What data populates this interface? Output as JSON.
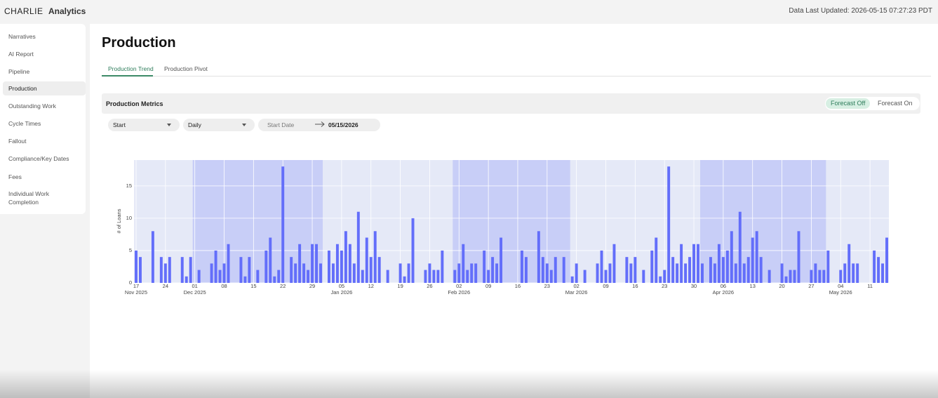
{
  "header": {
    "logo": "CHARLIE",
    "app": "Analytics",
    "updated": "Data Last Updated: 2026-05-15 07:27:23 PDT"
  },
  "nav": {
    "items": [
      "Narratives",
      "AI Report",
      "Pipeline",
      "Production",
      "Outstanding Work",
      "Cycle Times",
      "Fallout",
      "Compliance/Key Dates",
      "Fees",
      "Individual Work Completion"
    ],
    "active": 3
  },
  "page": {
    "title": "Production",
    "tabs": [
      "Production Trend",
      "Production Pivot"
    ],
    "active_tab": 0
  },
  "card": {
    "title": "Production Metrics",
    "toggle": [
      "Forecast Off",
      "Forecast On"
    ],
    "active_toggle": 0
  },
  "filters": {
    "metric": "Start",
    "interval": "Daily",
    "start_placeholder": "Start Date",
    "end_date": "05/15/2026"
  },
  "chart_data": {
    "type": "bar",
    "ylabel": "# of Loans",
    "color": "#636efa",
    "grid": true,
    "ylim": [
      0,
      19
    ],
    "yticks": [
      0,
      5,
      10,
      15
    ],
    "xlim": [
      "2025-11-17",
      "2026-05-15"
    ],
    "bands": [
      [
        "2025-12-01",
        "2026-01-01"
      ],
      [
        "2026-02-01",
        "2026-03-01"
      ],
      [
        "2026-04-01",
        "2026-05-01"
      ]
    ],
    "xticks": [
      {
        "value": "2025-11-17",
        "label": "17",
        "month": "Nov 2025"
      },
      {
        "value": "2025-11-24",
        "label": "24"
      },
      {
        "value": "2025-12-01",
        "label": "01",
        "month": "Dec 2025"
      },
      {
        "value": "2025-12-08",
        "label": "08"
      },
      {
        "value": "2025-12-15",
        "label": "15"
      },
      {
        "value": "2025-12-22",
        "label": "22"
      },
      {
        "value": "2025-12-29",
        "label": "29"
      },
      {
        "value": "2026-01-05",
        "label": "05",
        "month": "Jan 2026"
      },
      {
        "value": "2026-01-12",
        "label": "12"
      },
      {
        "value": "2026-01-19",
        "label": "19"
      },
      {
        "value": "2026-01-26",
        "label": "26"
      },
      {
        "value": "2026-02-02",
        "label": "02",
        "month": "Feb 2026"
      },
      {
        "value": "2026-02-09",
        "label": "09"
      },
      {
        "value": "2026-02-16",
        "label": "16"
      },
      {
        "value": "2026-02-23",
        "label": "23"
      },
      {
        "value": "2026-03-02",
        "label": "02",
        "month": "Mar 2026"
      },
      {
        "value": "2026-03-09",
        "label": "09"
      },
      {
        "value": "2026-03-16",
        "label": "16"
      },
      {
        "value": "2026-03-23",
        "label": "23"
      },
      {
        "value": "2026-03-30",
        "label": "30"
      },
      {
        "value": "2026-04-06",
        "label": "06",
        "month": "Apr 2026"
      },
      {
        "value": "2026-04-13",
        "label": "13"
      },
      {
        "value": "2026-04-20",
        "label": "20"
      },
      {
        "value": "2026-04-27",
        "label": "27"
      },
      {
        "value": "2026-05-04",
        "label": "04",
        "month": "May 2026"
      },
      {
        "value": "2026-05-11",
        "label": "11"
      }
    ],
    "x": [
      "2025-11-17",
      "2025-11-18",
      "2025-11-19",
      "2025-11-20",
      "2025-11-21",
      "2025-11-22",
      "2025-11-23",
      "2025-11-24",
      "2025-11-25",
      "2025-11-26",
      "2025-11-27",
      "2025-11-28",
      "2025-11-29",
      "2025-11-30",
      "2025-12-01",
      "2025-12-02",
      "2025-12-03",
      "2025-12-04",
      "2025-12-05",
      "2025-12-06",
      "2025-12-07",
      "2025-12-08",
      "2025-12-09",
      "2025-12-10",
      "2025-12-11",
      "2025-12-12",
      "2025-12-13",
      "2025-12-14",
      "2025-12-15",
      "2025-12-16",
      "2025-12-17",
      "2025-12-18",
      "2025-12-19",
      "2025-12-20",
      "2025-12-21",
      "2025-12-22",
      "2025-12-23",
      "2025-12-24",
      "2025-12-25",
      "2025-12-26",
      "2025-12-27",
      "2025-12-28",
      "2025-12-29",
      "2025-12-30",
      "2025-12-31",
      "2026-01-01",
      "2026-01-02",
      "2026-01-03",
      "2026-01-04",
      "2026-01-05",
      "2026-01-06",
      "2026-01-07",
      "2026-01-08",
      "2026-01-09",
      "2026-01-10",
      "2026-01-11",
      "2026-01-12",
      "2026-01-13",
      "2026-01-14",
      "2026-01-15",
      "2026-01-16",
      "2026-01-17",
      "2026-01-18",
      "2026-01-19",
      "2026-01-20",
      "2026-01-21",
      "2026-01-22",
      "2026-01-23",
      "2026-01-24",
      "2026-01-25",
      "2026-01-26",
      "2026-01-27",
      "2026-01-28",
      "2026-01-29",
      "2026-01-30",
      "2026-01-31",
      "2026-02-01",
      "2026-02-02",
      "2026-02-03",
      "2026-02-04",
      "2026-02-05",
      "2026-02-06",
      "2026-02-07",
      "2026-02-08",
      "2026-02-09",
      "2026-02-10",
      "2026-02-11",
      "2026-02-12",
      "2026-02-13",
      "2026-02-14",
      "2026-02-15",
      "2026-02-16",
      "2026-02-17",
      "2026-02-18",
      "2026-02-19",
      "2026-02-20",
      "2026-02-21",
      "2026-02-22",
      "2026-02-23",
      "2026-02-24",
      "2026-02-25",
      "2026-02-26",
      "2026-02-27",
      "2026-02-28",
      "2026-03-01",
      "2026-03-02",
      "2026-03-03",
      "2026-03-04",
      "2026-03-05",
      "2026-03-06",
      "2026-03-07",
      "2026-03-08",
      "2026-03-09",
      "2026-03-10",
      "2026-03-11",
      "2026-03-12",
      "2026-03-13",
      "2026-03-14",
      "2026-03-15",
      "2026-03-16",
      "2026-03-17",
      "2026-03-18",
      "2026-03-19",
      "2026-03-20",
      "2026-03-21",
      "2026-03-22",
      "2026-03-23",
      "2026-03-24",
      "2026-03-25",
      "2026-03-26",
      "2026-03-27",
      "2026-03-28",
      "2026-03-29",
      "2026-03-30",
      "2026-03-31",
      "2026-04-01",
      "2026-04-02",
      "2026-04-03",
      "2026-04-04",
      "2026-04-05",
      "2026-04-06",
      "2026-04-07",
      "2026-04-08",
      "2026-04-09",
      "2026-04-10",
      "2026-04-11",
      "2026-04-12",
      "2026-04-13",
      "2026-04-14",
      "2026-04-15",
      "2026-04-16",
      "2026-04-17",
      "2026-04-18",
      "2026-04-19",
      "2026-04-20",
      "2026-04-21",
      "2026-04-22",
      "2026-04-23",
      "2026-04-24",
      "2026-04-25",
      "2026-04-26",
      "2026-04-27",
      "2026-04-28",
      "2026-04-29",
      "2026-04-30",
      "2026-05-01",
      "2026-05-02",
      "2026-05-03",
      "2026-05-04",
      "2026-05-05",
      "2026-05-06",
      "2026-05-07",
      "2026-05-08",
      "2026-05-09",
      "2026-05-10",
      "2026-05-11",
      "2026-05-12",
      "2026-05-13",
      "2026-05-14",
      "2026-05-15"
    ],
    "values": [
      5,
      4,
      0,
      0,
      8,
      0,
      4,
      3,
      4,
      0,
      0,
      4,
      1,
      4,
      0,
      2,
      0,
      0,
      3,
      5,
      2,
      3,
      6,
      0,
      0,
      4,
      1,
      4,
      0,
      2,
      0,
      5,
      7,
      1,
      2,
      18,
      0,
      4,
      3,
      6,
      3,
      2,
      6,
      6,
      3,
      0,
      5,
      3,
      6,
      5,
      8,
      6,
      3,
      11,
      2,
      7,
      4,
      8,
      4,
      0,
      2,
      0,
      0,
      3,
      1,
      3,
      10,
      0,
      0,
      2,
      3,
      2,
      2,
      5,
      0,
      0,
      2,
      3,
      6,
      2,
      3,
      3,
      0,
      5,
      2,
      4,
      3,
      7,
      0,
      0,
      0,
      0,
      5,
      4,
      0,
      0,
      8,
      4,
      3,
      2,
      4,
      0,
      4,
      0,
      1,
      3,
      0,
      2,
      0,
      0,
      3,
      5,
      2,
      3,
      6,
      0,
      0,
      4,
      3,
      4,
      0,
      2,
      0,
      5,
      7,
      1,
      2,
      18,
      4,
      3,
      6,
      3,
      4,
      6,
      6,
      3,
      0,
      4,
      3,
      6,
      4,
      5,
      8,
      3,
      11,
      3,
      4,
      7,
      8,
      4,
      0,
      2,
      0,
      0,
      3,
      1,
      2,
      2,
      8,
      0,
      0,
      2,
      3,
      2,
      2,
      5,
      0,
      0,
      2,
      3,
      6,
      3,
      3,
      0,
      0,
      0,
      5,
      4,
      3,
      7
    ]
  }
}
